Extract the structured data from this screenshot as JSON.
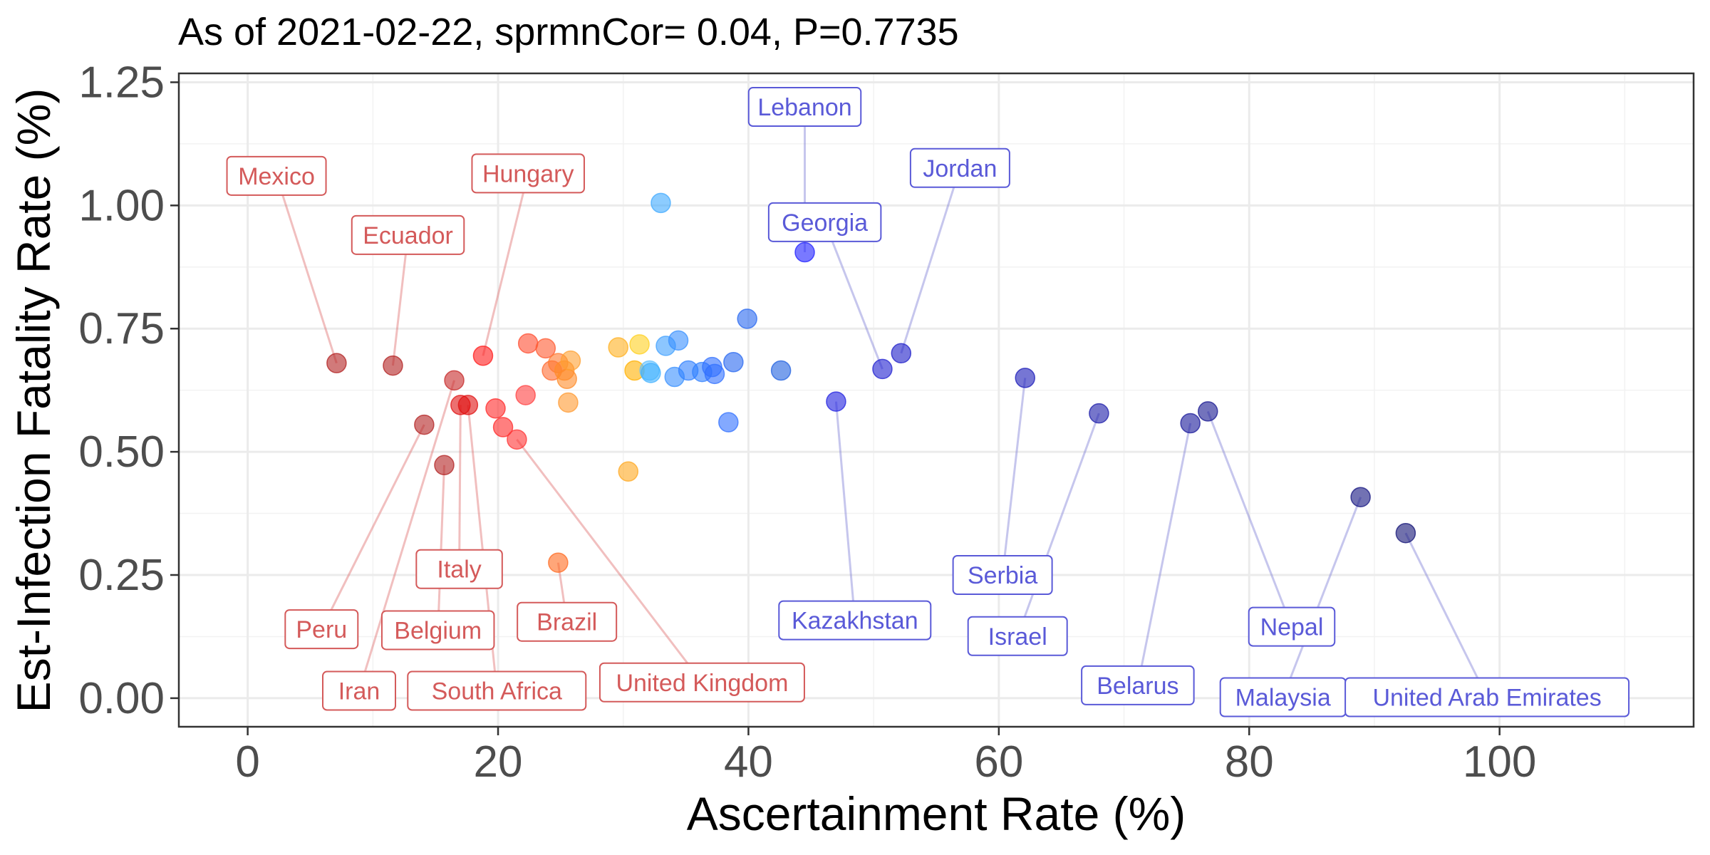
{
  "chart_data": {
    "type": "scatter",
    "title": "As of 2021-02-22, sprmnCor= 0.04, P=0.7735",
    "xlabel": "Ascertainment Rate (%)",
    "ylabel": "Est-Infection Fatality Rate (%)",
    "xlim": [
      -5.5,
      115.5
    ],
    "ylim": [
      -0.058,
      1.268
    ],
    "x_ticks": [
      0,
      20,
      40,
      60,
      80,
      100
    ],
    "x_tick_labels": [
      "0",
      "20",
      "40",
      "60",
      "80",
      "100"
    ],
    "y_ticks": [
      0,
      0.25,
      0.5,
      0.75,
      1.0,
      1.25
    ],
    "y_tick_labels": [
      "0.00",
      "0.25",
      "0.50",
      "0.75",
      "1.00",
      "1.25"
    ],
    "grid": true,
    "legend": "none",
    "colors": {
      "red_group_label": "#d45a5a",
      "blue_group_label": "#5a5ad8"
    },
    "points": [
      {
        "x": 7.1,
        "y": 0.68,
        "color": "#b22222",
        "label": "Mexico",
        "lx": 2.3,
        "ly": 1.06
      },
      {
        "x": 11.6,
        "y": 0.675,
        "color": "#b22222",
        "label": "Ecuador",
        "lx": 12.8,
        "ly": 0.94
      },
      {
        "x": 14.1,
        "y": 0.555,
        "color": "#b22222",
        "label": "Peru",
        "lx": 5.9,
        "ly": 0.14
      },
      {
        "x": 15.7,
        "y": 0.473,
        "color": "#b22222",
        "label": "Belgium",
        "lx": 15.2,
        "ly": 0.138
      },
      {
        "x": 16.5,
        "y": 0.645,
        "color": "#c62828",
        "label": "Iran",
        "lx": 8.9,
        "ly": 0.015
      },
      {
        "x": 17.0,
        "y": 0.595,
        "color": "#e01010",
        "label": "Italy",
        "lx": 16.9,
        "ly": 0.262
      },
      {
        "x": 17.6,
        "y": 0.595,
        "color": "#e01010",
        "label": "South Africa",
        "lx": 19.9,
        "ly": 0.015
      },
      {
        "x": 18.8,
        "y": 0.695,
        "color": "#ff1a1a",
        "label": "Hungary",
        "lx": 22.4,
        "ly": 1.065
      },
      {
        "x": 19.8,
        "y": 0.588,
        "color": "#ff2a2a",
        "label": "",
        "lx": null,
        "ly": null
      },
      {
        "x": 20.4,
        "y": 0.55,
        "color": "#ff2a2a",
        "label": "",
        "lx": null,
        "ly": null
      },
      {
        "x": 21.5,
        "y": 0.525,
        "color": "#ff3333",
        "label": "United Kingdom",
        "lx": 36.3,
        "ly": 0.032
      },
      {
        "x": 22.2,
        "y": 0.615,
        "color": "#ff4040",
        "label": "",
        "lx": null,
        "ly": null
      },
      {
        "x": 22.4,
        "y": 0.72,
        "color": "#ff4d30",
        "label": "",
        "lx": null,
        "ly": null
      },
      {
        "x": 23.8,
        "y": 0.71,
        "color": "#ff5a30",
        "label": "",
        "lx": null,
        "ly": null
      },
      {
        "x": 24.3,
        "y": 0.665,
        "color": "#ff6a30",
        "label": "",
        "lx": null,
        "ly": null
      },
      {
        "x": 24.8,
        "y": 0.68,
        "color": "#ff7a30",
        "label": "",
        "lx": null,
        "ly": null
      },
      {
        "x": 24.8,
        "y": 0.275,
        "color": "#ff6a20",
        "label": "Brazil",
        "lx": 25.5,
        "ly": 0.155
      },
      {
        "x": 25.3,
        "y": 0.665,
        "color": "#ff8c2a",
        "label": "",
        "lx": null,
        "ly": null
      },
      {
        "x": 25.5,
        "y": 0.648,
        "color": "#ff8c2a",
        "label": "",
        "lx": null,
        "ly": null
      },
      {
        "x": 25.8,
        "y": 0.685,
        "color": "#ffa030",
        "label": "",
        "lx": null,
        "ly": null
      },
      {
        "x": 25.6,
        "y": 0.6,
        "color": "#ff9a30",
        "label": "",
        "lx": null,
        "ly": null
      },
      {
        "x": 29.6,
        "y": 0.712,
        "color": "#ffb020",
        "label": "",
        "lx": null,
        "ly": null
      },
      {
        "x": 30.4,
        "y": 0.46,
        "color": "#ffa820",
        "label": "",
        "lx": null,
        "ly": null
      },
      {
        "x": 30.9,
        "y": 0.665,
        "color": "#ffb000",
        "label": "",
        "lx": null,
        "ly": null
      },
      {
        "x": 31.3,
        "y": 0.718,
        "color": "#ffd020",
        "label": "",
        "lx": null,
        "ly": null
      },
      {
        "x": 32.1,
        "y": 0.665,
        "color": "#60c0ff",
        "label": "",
        "lx": null,
        "ly": null
      },
      {
        "x": 32.2,
        "y": 0.66,
        "color": "#40b0ff",
        "label": "",
        "lx": null,
        "ly": null
      },
      {
        "x": 33.0,
        "y": 1.005,
        "color": "#40aaff",
        "label": "",
        "lx": null,
        "ly": null
      },
      {
        "x": 33.4,
        "y": 0.715,
        "color": "#40a0ff",
        "label": "",
        "lx": null,
        "ly": null
      },
      {
        "x": 34.1,
        "y": 0.652,
        "color": "#3890ff",
        "label": "",
        "lx": null,
        "ly": null
      },
      {
        "x": 34.4,
        "y": 0.726,
        "color": "#3890ff",
        "label": "",
        "lx": null,
        "ly": null
      },
      {
        "x": 35.2,
        "y": 0.665,
        "color": "#3080ff",
        "label": "",
        "lx": null,
        "ly": null
      },
      {
        "x": 36.3,
        "y": 0.662,
        "color": "#3080ff",
        "label": "",
        "lx": null,
        "ly": null
      },
      {
        "x": 37.1,
        "y": 0.672,
        "color": "#3070ff",
        "label": "",
        "lx": null,
        "ly": null
      },
      {
        "x": 37.3,
        "y": 0.658,
        "color": "#3070ff",
        "label": "",
        "lx": null,
        "ly": null
      },
      {
        "x": 38.4,
        "y": 0.56,
        "color": "#3070ff",
        "label": "",
        "lx": null,
        "ly": null
      },
      {
        "x": 38.8,
        "y": 0.682,
        "color": "#2868f0",
        "label": "",
        "lx": null,
        "ly": null
      },
      {
        "x": 39.9,
        "y": 0.77,
        "color": "#2868f0",
        "label": "",
        "lx": null,
        "ly": null
      },
      {
        "x": 42.6,
        "y": 0.665,
        "color": "#2060e0",
        "label": "",
        "lx": null,
        "ly": null
      },
      {
        "x": 44.5,
        "y": 0.905,
        "color": "#2020ff",
        "label": "Lebanon",
        "lx": 44.5,
        "ly": 1.2
      },
      {
        "x": 47.0,
        "y": 0.602,
        "color": "#2020e0",
        "label": "Kazakhstan",
        "lx": 48.5,
        "ly": 0.158
      },
      {
        "x": 50.7,
        "y": 0.668,
        "color": "#2020d0",
        "label": "Georgia",
        "lx": 46.1,
        "ly": 0.966
      },
      {
        "x": 52.2,
        "y": 0.7,
        "color": "#1c1cc8",
        "label": "Jordan",
        "lx": 56.9,
        "ly": 1.076
      },
      {
        "x": 62.1,
        "y": 0.65,
        "color": "#1a1ab8",
        "label": "Serbia",
        "lx": 60.3,
        "ly": 0.25
      },
      {
        "x": 68.0,
        "y": 0.578,
        "color": "#1a1aa8",
        "label": "Israel",
        "lx": 61.5,
        "ly": 0.126
      },
      {
        "x": 75.3,
        "y": 0.558,
        "color": "#18189a",
        "label": "Belarus",
        "lx": 71.1,
        "ly": 0.026
      },
      {
        "x": 76.7,
        "y": 0.582,
        "color": "#161690",
        "label": "Nepal",
        "lx": 83.4,
        "ly": 0.145
      },
      {
        "x": 88.9,
        "y": 0.408,
        "color": "#141480",
        "label": "Malaysia",
        "lx": 82.7,
        "ly": 0.002
      },
      {
        "x": 92.5,
        "y": 0.335,
        "color": "#121275",
        "label": "United Arab Emirates",
        "lx": 99.0,
        "ly": 0.002
      }
    ]
  }
}
